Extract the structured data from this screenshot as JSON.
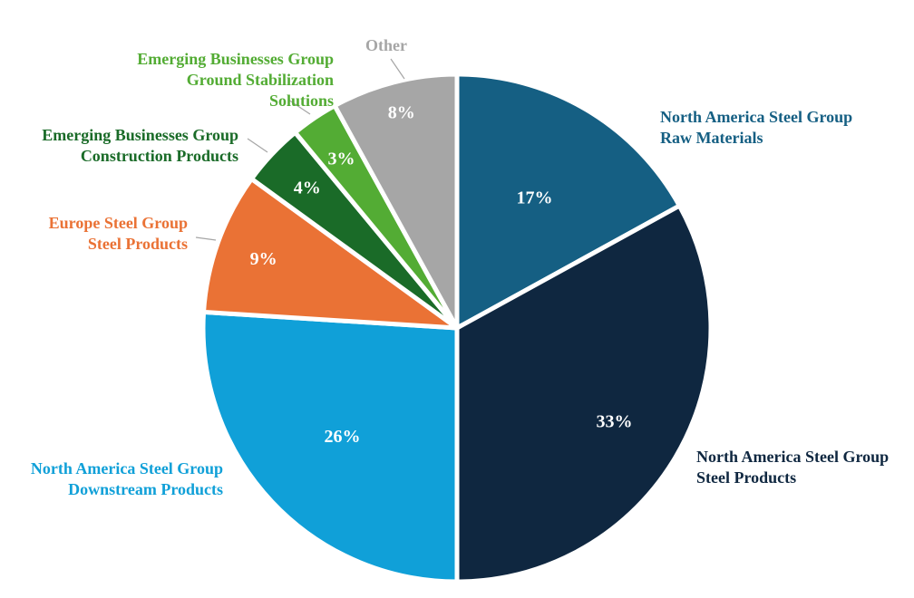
{
  "chart_data": {
    "type": "pie",
    "title": "",
    "unit": "%",
    "slices": [
      {
        "label_lines": [
          "North America Steel Group",
          "Raw Materials"
        ],
        "value": 17,
        "display": "17%",
        "color": "#155f83",
        "label_color": "#155f83"
      },
      {
        "label_lines": [
          "North America Steel Group",
          "Steel Products"
        ],
        "value": 33,
        "display": "33%",
        "color": "#0f2740",
        "label_color": "#0f2740"
      },
      {
        "label_lines": [
          "North America Steel Group",
          "Downstream Products"
        ],
        "value": 26,
        "display": "26%",
        "color": "#10a0d8",
        "label_color": "#10a0d8"
      },
      {
        "label_lines": [
          "Europe Steel Group",
          "Steel Products"
        ],
        "value": 9,
        "display": "9%",
        "color": "#ea7235",
        "label_color": "#ea7235"
      },
      {
        "label_lines": [
          "Emerging Businesses Group",
          "Construction Products"
        ],
        "value": 4,
        "display": "4%",
        "color": "#1a6b28",
        "label_color": "#1a6b28"
      },
      {
        "label_lines": [
          "Emerging Businesses Group",
          "Ground Stabilization",
          "Solutions"
        ],
        "value": 3,
        "display": "3%",
        "color": "#53ac34",
        "label_color": "#53ac34"
      },
      {
        "label_lines": [
          "Other"
        ],
        "value": 8,
        "display": "8%",
        "color": "#a6a6a6",
        "label_color": "#a6a6a6"
      }
    ]
  }
}
